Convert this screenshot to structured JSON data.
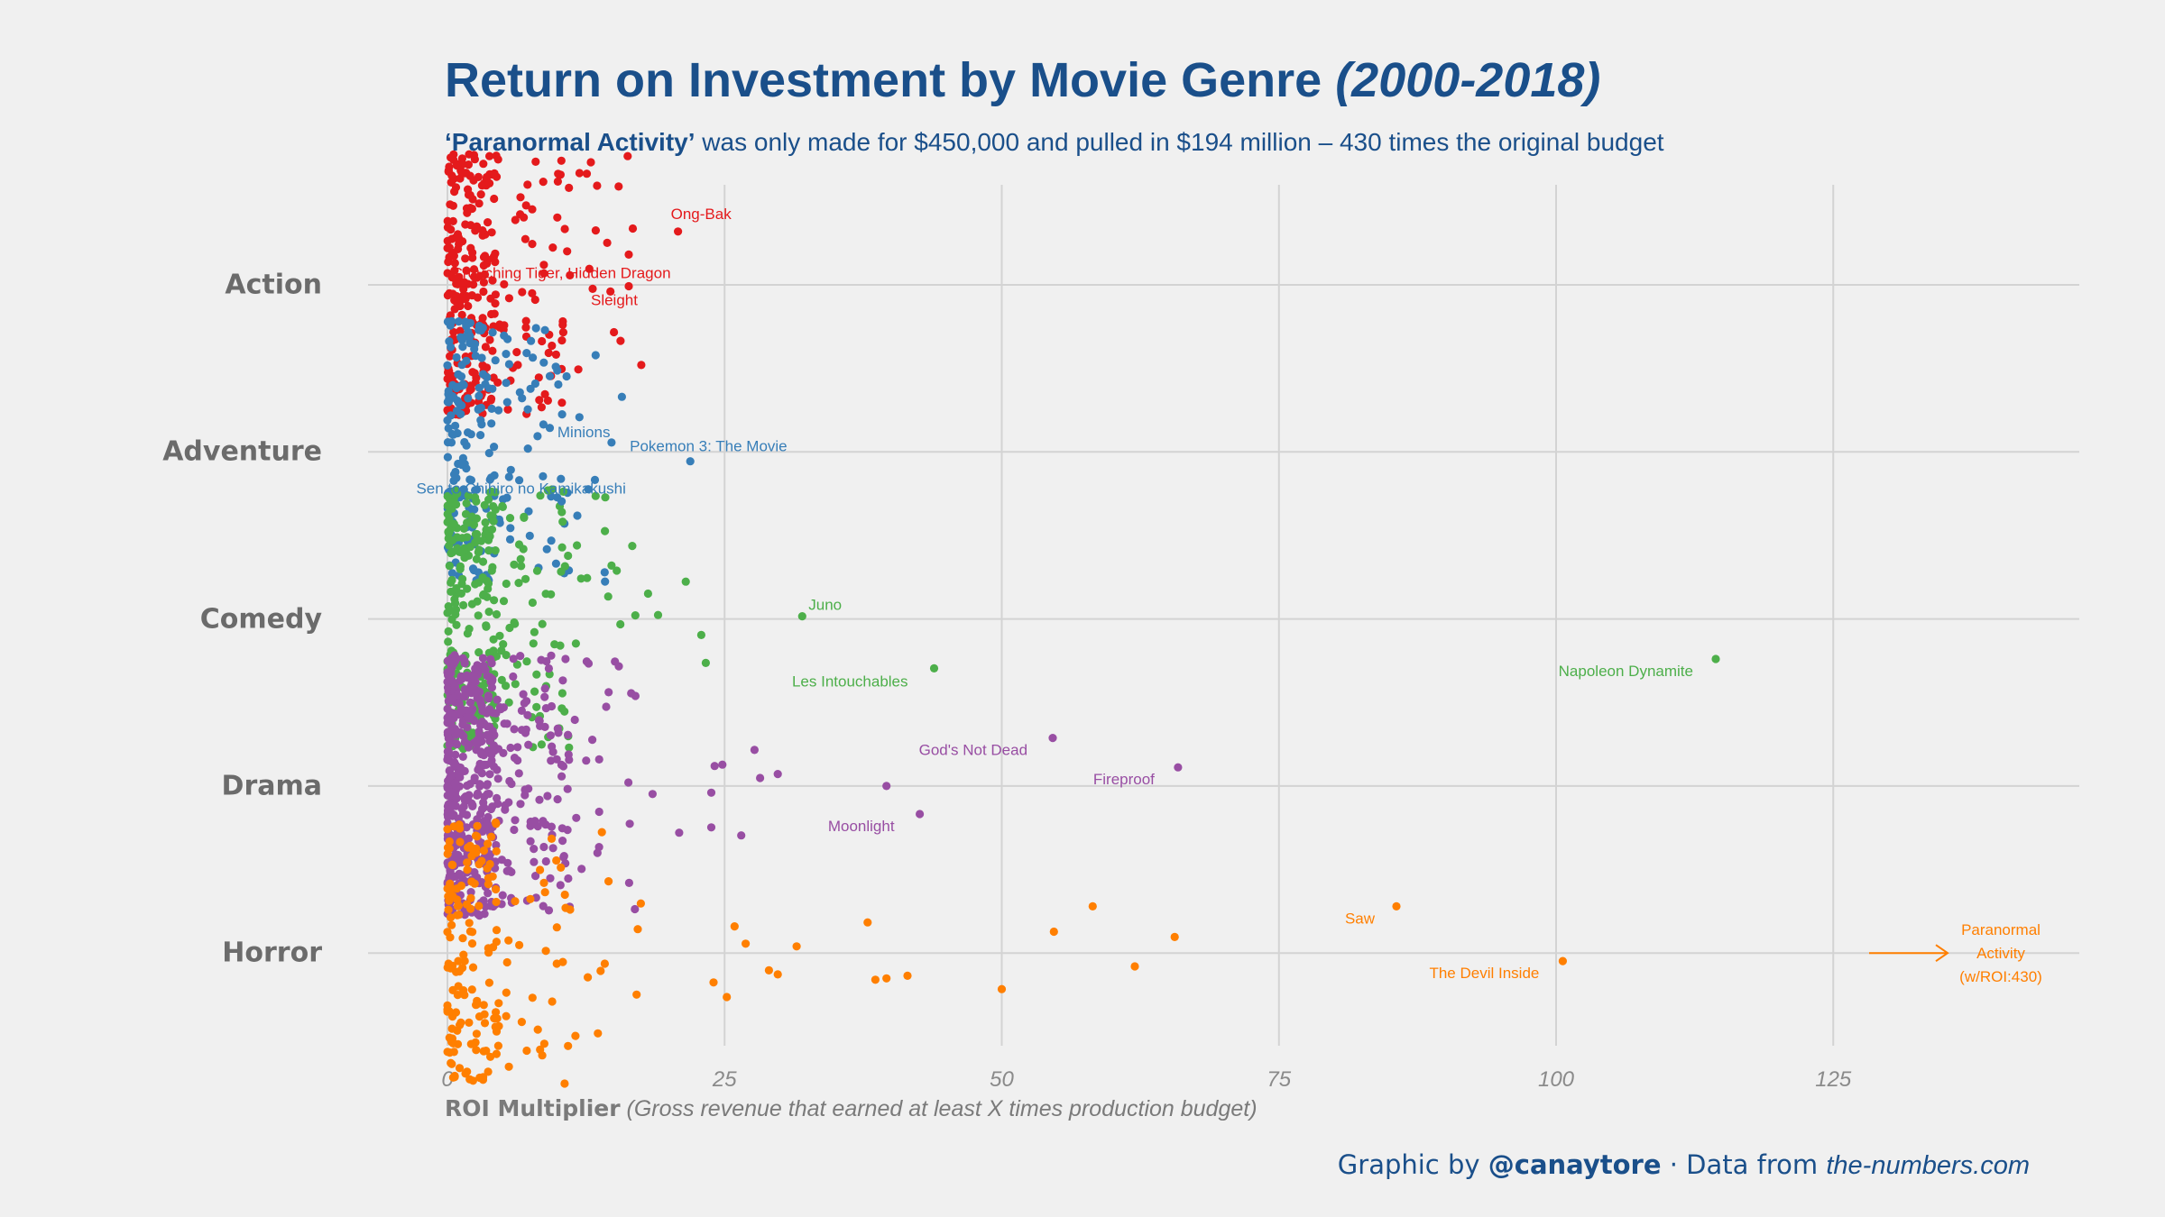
{
  "header": {
    "title": "Return on Investment by Movie Genre",
    "title_years": "(2000-2018)",
    "subtitle_bold": "‘Paranormal Activity’",
    "subtitle_rest": " was only made for $450,000 and pulled in $194 million – 430 times the original budget"
  },
  "axis": {
    "x_label_main": "ROI Multiplier",
    "x_label_note": " (Gross revenue that earned at least X times production budget)"
  },
  "credit": {
    "prefix": "Graphic by ",
    "handle": "@canaytore",
    "middle": " · Data from ",
    "site": "the-numbers.com"
  },
  "chart_data": {
    "type": "scatter",
    "style": "jittered strip plot",
    "xlim": [
      0,
      140
    ],
    "x_ticks": [
      "0",
      "25",
      "50",
      "75",
      "100",
      "125"
    ],
    "x_tick_values": [
      0,
      25,
      50,
      75,
      100,
      125
    ],
    "grid": true,
    "categories": [
      "Action",
      "Adventure",
      "Comedy",
      "Drama",
      "Horror"
    ],
    "colors": {
      "Action": "#e41a1c",
      "Adventure": "#377eb8",
      "Comedy": "#4daf4a",
      "Drama": "#984ea3",
      "Horror": "#ff7f00"
    },
    "series": [
      {
        "name": "Action",
        "outliers": [
          {
            "x": 20.8,
            "jitter": 0.4,
            "label": "Ong-Bak"
          },
          {
            "x": 12.8,
            "jitter": 0.12,
            "label": ""
          },
          {
            "x": 14.7,
            "jitter": -0.05,
            "label": "Crouching Tiger, Hidden Dragon"
          },
          {
            "x": 13.1,
            "jitter": -0.03,
            "label": "Sleight"
          },
          {
            "x": 10.4,
            "jitter": -0.3,
            "label": ""
          },
          {
            "x": 9.5,
            "jitter": 0.28,
            "label": ""
          },
          {
            "x": 8.7,
            "jitter": 0.15,
            "label": ""
          }
        ]
      },
      {
        "name": "Adventure",
        "outliers": [
          {
            "x": 21.9,
            "jitter": -0.07,
            "label": "Pokemon 3: The Movie"
          },
          {
            "x": 14.8,
            "jitter": 0.07,
            "label": "Minions"
          },
          {
            "x": 13.3,
            "jitter": -0.21,
            "label": "Sen to Chihiro no Kamikakushi"
          },
          {
            "x": 11.9,
            "jitter": 0.26,
            "label": ""
          },
          {
            "x": 12.7,
            "jitter": -0.28,
            "label": ""
          },
          {
            "x": 10.3,
            "jitter": -0.37,
            "label": ""
          }
        ]
      },
      {
        "name": "Comedy",
        "outliers": [
          {
            "x": 114.4,
            "jitter": -0.3,
            "label": "Napoleon Dynamite"
          },
          {
            "x": 43.9,
            "jitter": -0.37,
            "label": "Les Intouchables"
          },
          {
            "x": 32.0,
            "jitter": 0.02,
            "label": "Juno"
          },
          {
            "x": 23.3,
            "jitter": -0.33,
            "label": ""
          },
          {
            "x": 22.9,
            "jitter": -0.12,
            "label": ""
          },
          {
            "x": 21.5,
            "jitter": 0.28,
            "label": ""
          },
          {
            "x": 19.0,
            "jitter": 0.03,
            "label": ""
          },
          {
            "x": 18.1,
            "jitter": 0.19,
            "label": ""
          },
          {
            "x": 15.6,
            "jitter": -0.04,
            "label": ""
          },
          {
            "x": 14.8,
            "jitter": 0.4,
            "label": ""
          }
        ]
      },
      {
        "name": "Drama",
        "outliers": [
          {
            "x": 65.9,
            "jitter": 0.14,
            "label": "Fireproof"
          },
          {
            "x": 54.6,
            "jitter": 0.36,
            "label": "God's Not Dead"
          },
          {
            "x": 42.6,
            "jitter": -0.21,
            "label": "Moonlight"
          },
          {
            "x": 39.6,
            "jitter": 0.0,
            "label": ""
          },
          {
            "x": 29.8,
            "jitter": 0.09,
            "label": ""
          },
          {
            "x": 28.2,
            "jitter": 0.06,
            "label": ""
          },
          {
            "x": 27.7,
            "jitter": 0.27,
            "label": ""
          },
          {
            "x": 24.8,
            "jitter": 0.16,
            "label": ""
          },
          {
            "x": 24.1,
            "jitter": 0.15,
            "label": ""
          },
          {
            "x": 23.8,
            "jitter": -0.05,
            "label": ""
          },
          {
            "x": 23.8,
            "jitter": -0.31,
            "label": ""
          },
          {
            "x": 26.5,
            "jitter": -0.37,
            "label": ""
          },
          {
            "x": 20.9,
            "jitter": -0.35,
            "label": ""
          },
          {
            "x": 18.5,
            "jitter": -0.06,
            "label": ""
          }
        ]
      },
      {
        "name": "Horror",
        "outliers": [
          {
            "x": 430.0,
            "jitter": 0.0,
            "label": "Paranormal Activity (w/ROI:430)",
            "offscale": true
          },
          {
            "x": 100.6,
            "jitter": -0.06,
            "label": "The Devil Inside"
          },
          {
            "x": 85.6,
            "jitter": 0.35,
            "label": "Saw"
          },
          {
            "x": 65.6,
            "jitter": 0.12,
            "label": ""
          },
          {
            "x": 62.0,
            "jitter": -0.1,
            "label": ""
          },
          {
            "x": 58.2,
            "jitter": 0.35,
            "label": ""
          },
          {
            "x": 54.7,
            "jitter": 0.16,
            "label": ""
          },
          {
            "x": 50.0,
            "jitter": -0.27,
            "label": ""
          },
          {
            "x": 41.5,
            "jitter": -0.17,
            "label": ""
          },
          {
            "x": 39.6,
            "jitter": -0.19,
            "label": ""
          },
          {
            "x": 38.6,
            "jitter": -0.2,
            "label": ""
          },
          {
            "x": 37.9,
            "jitter": 0.23,
            "label": ""
          },
          {
            "x": 31.5,
            "jitter": 0.05,
            "label": ""
          },
          {
            "x": 29.8,
            "jitter": -0.16,
            "label": ""
          },
          {
            "x": 29.0,
            "jitter": -0.13,
            "label": ""
          },
          {
            "x": 26.9,
            "jitter": 0.07,
            "label": ""
          },
          {
            "x": 25.9,
            "jitter": 0.2,
            "label": ""
          },
          {
            "x": 25.2,
            "jitter": -0.33,
            "label": ""
          },
          {
            "x": 24.0,
            "jitter": -0.22,
            "label": ""
          }
        ]
      }
    ],
    "note": "Each category also contains several hundred densely packed points with ROI between 0 and about 18."
  }
}
